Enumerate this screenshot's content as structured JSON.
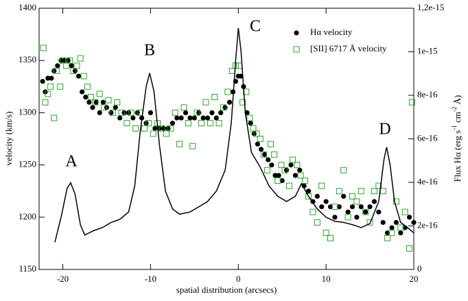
{
  "chart_data": {
    "type": "scatter",
    "xlabel": "spatial distribution (arcsecs)",
    "ylabel": "velocity (km/s)",
    "y2label": [
      "Flux Hα (erg s",
      "-1",
      " cm",
      "-2",
      " Å)"
    ],
    "xlim": [
      -22.7,
      20
    ],
    "xticks": [
      -20,
      -10,
      0,
      10,
      20
    ],
    "ylim": [
      1150,
      1400
    ],
    "yticks": [
      1150,
      1200,
      1250,
      1300,
      1350,
      1400
    ],
    "y2lim": [
      0,
      1.2e-15
    ],
    "y2ticks": [
      0,
      2e-16,
      4e-16,
      6e-16,
      8e-16,
      1e-15,
      {
        "value": 1.2e-15,
        "label": "1,2e-15"
      }
    ],
    "annotations": [
      "A",
      "B",
      "C",
      "D"
    ],
    "legend": "upper right",
    "series": [
      {
        "name": "Hα  velocity",
        "type": "scatter",
        "marker": "circle",
        "color": "#000000",
        "x": [
          -22.3,
          -22,
          -21.7,
          -21.3,
          -21,
          -20.6,
          -20.2,
          -19.8,
          -19.4,
          -19,
          -18.6,
          -18.2,
          -17.8,
          -17.4,
          -17,
          -16.6,
          -16.2,
          -15.8,
          -15.4,
          -15,
          -14.5,
          -14,
          -13.5,
          -13,
          -12.5,
          -12,
          -11.5,
          -11,
          -10.5,
          -10,
          -9.5,
          -9,
          -8.5,
          -8,
          -7.5,
          -7,
          -6.5,
          -6,
          -5.5,
          -5,
          -4.5,
          -4,
          -3.5,
          -3,
          -2.5,
          -2,
          -1.5,
          -1,
          -0.6,
          -0.3,
          0,
          0.3,
          0.6,
          1,
          1.4,
          1.8,
          2.2,
          2.6,
          3,
          3.4,
          3.8,
          4.2,
          4.6,
          5,
          5.5,
          6,
          6.5,
          7,
          7.5,
          8,
          8.5,
          9,
          9.5,
          10,
          10.5,
          11,
          11.5,
          12,
          12.5,
          13,
          13.5,
          14,
          14.5,
          15,
          15.5,
          16,
          16.5,
          17,
          17.5,
          18,
          18.5,
          19,
          19.5,
          20
        ],
        "values": [
          1330,
          1320,
          1333,
          1333,
          1340,
          1345,
          1350,
          1350,
          1350,
          1345,
          1340,
          1335,
          1320,
          1315,
          1310,
          1305,
          1310,
          1300,
          1310,
          1305,
          1300,
          1305,
          1295,
          1300,
          1300,
          1295,
          1300,
          1295,
          1290,
          1300,
          1285,
          1285,
          1285,
          1285,
          1290,
          1295,
          1295,
          1300,
          1295,
          1295,
          1300,
          1295,
          1295,
          1300,
          1295,
          1300,
          1305,
          1310,
          1320,
          1330,
          1335,
          1335,
          1325,
          1300,
          1290,
          1280,
          1270,
          1265,
          1260,
          1255,
          1250,
          1240,
          1240,
          1235,
          1245,
          1250,
          1240,
          1245,
          1230,
          1225,
          1215,
          1220,
          1210,
          1215,
          1210,
          1200,
          1210,
          1220,
          1205,
          1210,
          1200,
          1210,
          1205,
          1210,
          1215,
          1205,
          1195,
          1185,
          1190,
          1195,
          1185,
          1190,
          1200,
          1195
        ]
      },
      {
        "name": "[SII] 6717 Å velocity",
        "type": "scatter",
        "marker": "square",
        "color": "#2ca02c",
        "x": [
          -22.2,
          -22,
          -21.7,
          -21.4,
          -21,
          -20.7,
          -20.3,
          -20,
          -19.6,
          -19.2,
          -18.8,
          -18.4,
          -18,
          -17.6,
          -17.2,
          -16.8,
          -16.3,
          -15.8,
          -15.3,
          -14.8,
          -14.3,
          -13.8,
          -13.3,
          -12.7,
          -12.2,
          -11.7,
          -11.2,
          -10.7,
          -10.2,
          -9.7,
          -9.2,
          -8.7,
          -8.2,
          -7.7,
          -7.2,
          -6.7,
          -6.2,
          -5.7,
          -5.2,
          -4.7,
          -4.2,
          -3.7,
          -3.2,
          -2.7,
          -2.2,
          -1.7,
          -1.2,
          -0.7,
          -0.3,
          0.1,
          0.5,
          0.9,
          1.3,
          1.7,
          2.1,
          2.5,
          2.9,
          3.3,
          3.7,
          4.1,
          4.5,
          4.9,
          5.3,
          5.8,
          6.2,
          6.7,
          7.1,
          7.6,
          8,
          8.5,
          9,
          9.5,
          10,
          10.5,
          11,
          11.5,
          12,
          12.5,
          13,
          13.5,
          14,
          14.5,
          15,
          15.5,
          16,
          16.5,
          17,
          17.5,
          18,
          18.5,
          19,
          19.5,
          19.8
        ],
        "values": [
          1362,
          1310,
          1318,
          1325,
          1295,
          1340,
          1325,
          1350,
          1345,
          1350,
          1340,
          1345,
          1352,
          1335,
          1325,
          1315,
          1310,
          1318,
          1305,
          1312,
          1300,
          1310,
          1300,
          1290,
          1300,
          1285,
          1300,
          1285,
          1290,
          1280,
          1290,
          1285,
          1280,
          1285,
          1300,
          1270,
          1305,
          1290,
          1268,
          1300,
          1290,
          1310,
          1290,
          1315,
          1290,
          1305,
          1320,
          1340,
          1345,
          1345,
          1310,
          1320,
          1295,
          1285,
          1280,
          1275,
          1260,
          1245,
          1270,
          1260,
          1235,
          1250,
          1245,
          1230,
          1255,
          1250,
          1240,
          1235,
          1220,
          1205,
          1195,
          1230,
          1185,
          1180,
          1210,
          1225,
          1245,
          1200,
          1220,
          1215,
          1225,
          1205,
          1195,
          1225,
          1230,
          1225,
          1180,
          1185,
          1215,
          1190,
          1205,
          1170,
          1310
        ]
      },
      {
        "type": "line",
        "axis": "y2",
        "color": "#000000",
        "x": [
          -20.9,
          -20.2,
          -19.5,
          -19.1,
          -18.6,
          -18,
          -17.5,
          -16.5,
          -15.5,
          -14.5,
          -13.5,
          -12.5,
          -11.8,
          -11.2,
          -10.5,
          -10.1,
          -9.6,
          -9,
          -8.3,
          -7.5,
          -6.7,
          -5.5,
          -4.5,
          -3.5,
          -2.5,
          -1.5,
          -0.8,
          -0.3,
          0,
          0.3,
          0.8,
          1.5,
          2.5,
          3.5,
          4.5,
          5.5,
          6.5,
          7.2,
          8,
          9,
          10,
          11,
          12,
          13,
          14,
          15,
          16,
          16.6,
          16.9,
          17.3,
          17.8,
          18.5,
          19.3,
          20
        ],
        "values": [
          1.25e-16,
          2.4e-16,
          3.74e-16,
          3.98e-16,
          3.46e-16,
          2.06e-16,
          1.58e-16,
          1.78e-16,
          1.92e-16,
          2.16e-16,
          2.3e-16,
          2.64e-16,
          3.84e-16,
          6.24e-16,
          8.4e-16,
          9.02e-16,
          8.16e-16,
          5.76e-16,
          3.6e-16,
          2.78e-16,
          2.54e-16,
          2.64e-16,
          2.88e-16,
          3.12e-16,
          3.6e-16,
          4.56e-16,
          6.72e-16,
          9.6e-16,
          1.109e-15,
          1.008e-15,
          7.2e-16,
          5.38e-16,
          4.7e-16,
          3.84e-16,
          3.36e-16,
          3.12e-16,
          3.36e-16,
          3.94e-16,
          3.36e-16,
          2.78e-16,
          2.4e-16,
          2.21e-16,
          2.16e-16,
          2.06e-16,
          1.92e-16,
          2.11e-16,
          3.12e-16,
          5.04e-16,
          5.62e-16,
          4.8e-16,
          3.12e-16,
          2.16e-16,
          1.92e-16,
          1.68e-16
        ]
      }
    ]
  }
}
